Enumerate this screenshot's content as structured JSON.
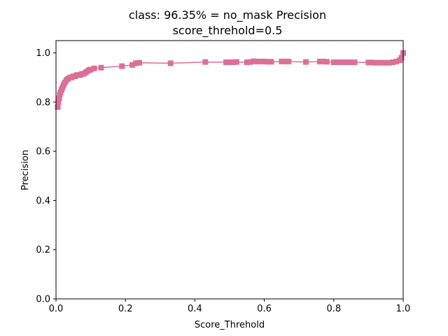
{
  "chart_data": {
    "type": "line",
    "title_line1": "class: 96.35% = no_mask Precision",
    "title_line2": "score_threhold=0.5",
    "xlabel": "Score_Threhold",
    "ylabel": "Precision",
    "xlim": [
      0,
      1
    ],
    "ylim": [
      0,
      1.05
    ],
    "xticks": [
      0,
      0.2,
      0.4,
      0.6,
      0.8,
      1.0
    ],
    "xtick_labels": [
      "0.0",
      "0.2",
      "0.4",
      "0.6",
      "0.8",
      "1.0"
    ],
    "yticks": [
      0,
      0.2,
      0.4,
      0.6,
      0.8,
      1.0
    ],
    "ytick_labels": [
      "0.0",
      "0.2",
      "0.4",
      "0.6",
      "0.8",
      "1.0"
    ],
    "grid": false,
    "series": [
      {
        "color": "#dc6f98",
        "marker": "square",
        "x": [
          0.005,
          0.007,
          0.009,
          0.011,
          0.013,
          0.016,
          0.019,
          0.022,
          0.026,
          0.03,
          0.035,
          0.04,
          0.045,
          0.05,
          0.055,
          0.06,
          0.065,
          0.07,
          0.075,
          0.08,
          0.085,
          0.09,
          0.095,
          0.1,
          0.11,
          0.13,
          0.19,
          0.22,
          0.23,
          0.24,
          0.33,
          0.43,
          0.49,
          0.5,
          0.51,
          0.52,
          0.55,
          0.56,
          0.57,
          0.58,
          0.59,
          0.6,
          0.61,
          0.62,
          0.65,
          0.66,
          0.67,
          0.72,
          0.76,
          0.77,
          0.78,
          0.8,
          0.81,
          0.82,
          0.83,
          0.84,
          0.85,
          0.86,
          0.9,
          0.91,
          0.92,
          0.93,
          0.94,
          0.95,
          0.96,
          0.97,
          0.98,
          0.99,
          0.995,
          1.0
        ],
        "y": [
          0.78,
          0.8,
          0.815,
          0.83,
          0.84,
          0.85,
          0.86,
          0.87,
          0.88,
          0.89,
          0.895,
          0.9,
          0.9,
          0.905,
          0.905,
          0.91,
          0.91,
          0.91,
          0.915,
          0.915,
          0.92,
          0.925,
          0.93,
          0.932,
          0.937,
          0.94,
          0.946,
          0.951,
          0.958,
          0.96,
          0.958,
          0.963,
          0.962,
          0.962,
          0.962,
          0.963,
          0.962,
          0.963,
          0.966,
          0.965,
          0.965,
          0.965,
          0.964,
          0.964,
          0.965,
          0.965,
          0.965,
          0.963,
          0.965,
          0.965,
          0.964,
          0.962,
          0.962,
          0.962,
          0.962,
          0.962,
          0.962,
          0.962,
          0.961,
          0.961,
          0.96,
          0.96,
          0.96,
          0.96,
          0.96,
          0.962,
          0.965,
          0.97,
          0.98,
          1.0
        ]
      }
    ]
  }
}
